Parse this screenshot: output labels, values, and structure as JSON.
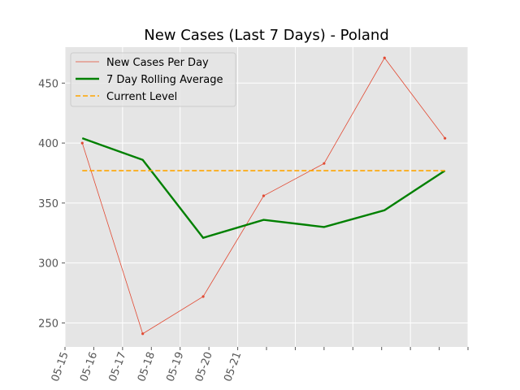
{
  "chart_data": {
    "type": "line",
    "title": "New Cases (Last 7 Days) - Poland",
    "xlabel": "",
    "ylabel": "",
    "x_tick_labels": [
      "05-15",
      "05-16",
      "05-17",
      "05-18",
      "05-19",
      "05-20",
      "05-21"
    ],
    "xlim": [
      0,
      14
    ],
    "ylim": [
      230,
      480
    ],
    "y_ticks": [
      250,
      300,
      350,
      400,
      450
    ],
    "grid": true,
    "legend_position": "top-left",
    "series": [
      {
        "name": "New Cases Per Day",
        "style": "thin-line-markers",
        "color": "#e24a33",
        "x": [
          0.6,
          2.7,
          4.8,
          6.9,
          9.0,
          11.1,
          13.2
        ],
        "values": [
          400,
          241,
          272,
          356,
          383,
          471,
          404
        ]
      },
      {
        "name": "7 Day Rolling Average",
        "style": "thick-line",
        "color": "#008000",
        "x": [
          0.6,
          2.7,
          4.8,
          6.9,
          9.0,
          11.1,
          13.2
        ],
        "values": [
          404,
          386,
          321,
          336,
          330,
          344,
          377
        ]
      },
      {
        "name": "Current Level",
        "style": "dashed",
        "color": "#ffa500",
        "x": [
          0.6,
          13.2
        ],
        "values": [
          377,
          377
        ]
      }
    ]
  }
}
